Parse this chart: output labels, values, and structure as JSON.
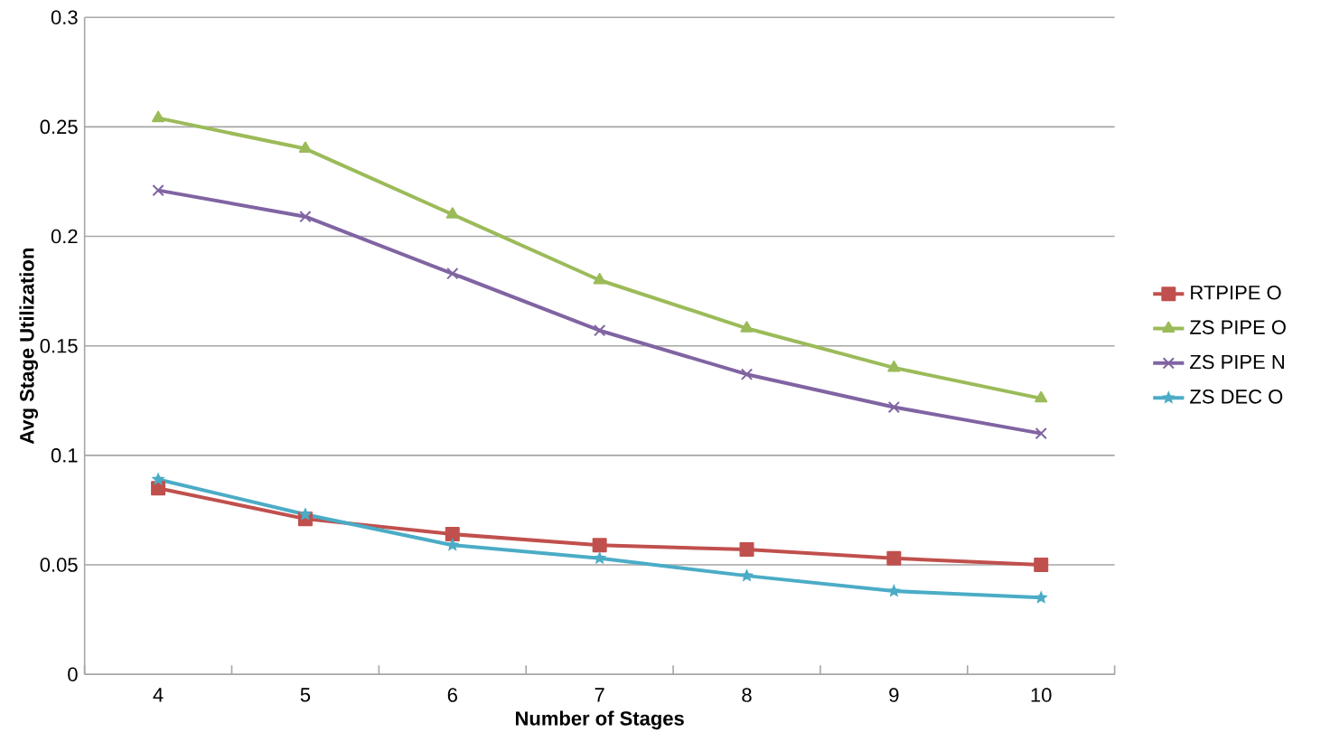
{
  "chart_data": {
    "type": "line",
    "xlabel": "Number of Stages",
    "ylabel": "Avg Stage Utilization",
    "categories": [
      "4",
      "5",
      "6",
      "7",
      "8",
      "9",
      "10"
    ],
    "series": [
      {
        "name": "RTPIPE O",
        "color": "#c0504d",
        "marker": "square",
        "values": [
          0.085,
          0.071,
          0.064,
          0.059,
          0.057,
          0.053,
          0.05
        ]
      },
      {
        "name": "ZS PIPE O",
        "color": "#9bbb59",
        "marker": "triangle",
        "values": [
          0.254,
          0.24,
          0.21,
          0.18,
          0.158,
          0.14,
          0.126
        ]
      },
      {
        "name": "ZS PIPE N",
        "color": "#8064a2",
        "marker": "cross",
        "values": [
          0.221,
          0.209,
          0.183,
          0.157,
          0.137,
          0.122,
          0.11
        ]
      },
      {
        "name": "ZS DEC O",
        "color": "#4bacc6",
        "marker": "star",
        "values": [
          0.089,
          0.073,
          0.059,
          0.053,
          0.045,
          0.038,
          0.035
        ]
      }
    ],
    "ylim": [
      0,
      0.3
    ],
    "yticks": [
      0,
      0.05,
      0.1,
      0.15,
      0.2,
      0.25,
      0.3
    ],
    "grid": "y",
    "legend": "right"
  }
}
